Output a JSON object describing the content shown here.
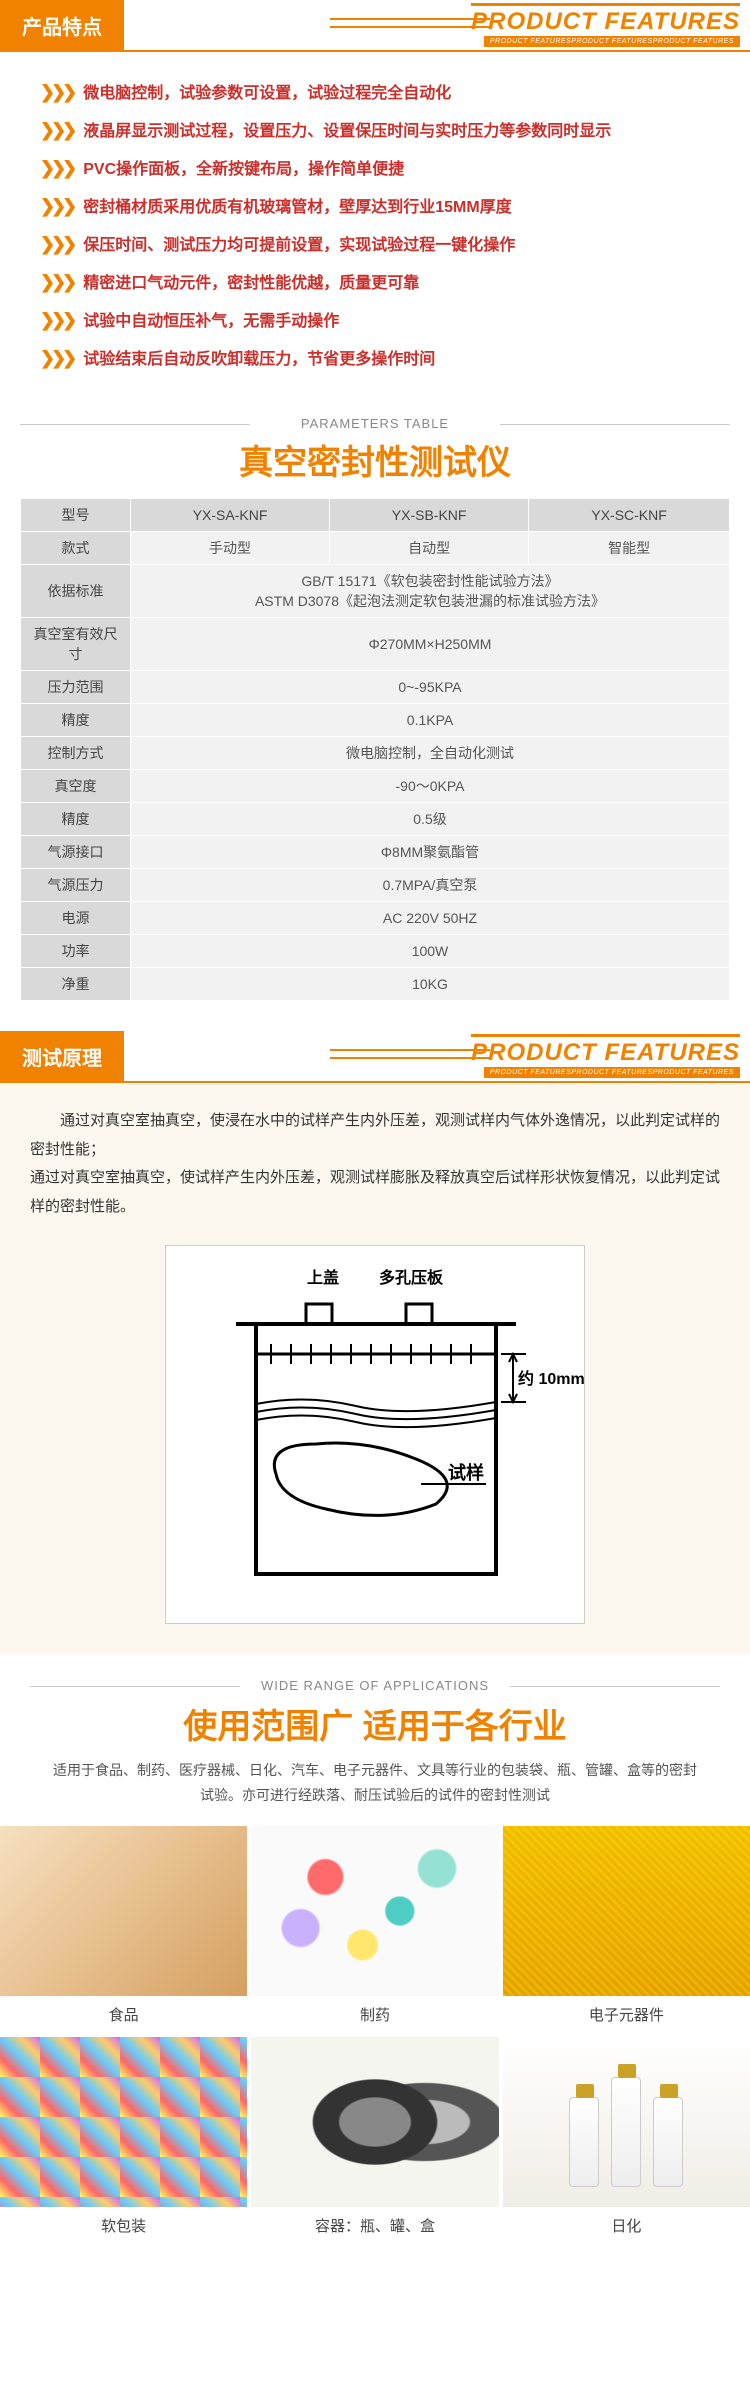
{
  "colors": {
    "accent": "#f08200",
    "feature_text": "#c9302c",
    "table_hdr_bg": "#d9d9d9",
    "table_cell_bg": "#f2f2f2",
    "principle_bg": "#fdf8ef"
  },
  "header1": {
    "cn": "产品特点",
    "en": "PRODUCT FEATURES",
    "sub": "PRODUCT FEATURESPRODUCT FEATURESPRODUCT FEATURES"
  },
  "features": [
    "微电脑控制，试验参数可设置，试验过程完全自动化",
    "液晶屏显示测试过程，设置压力、设置保压时间与实时压力等参数同时显示",
    "PVC操作面板，全新按键布局，操作简单便捷",
    "密封桶材质采用优质有机玻璃管材，壁厚达到行业15MM厚度",
    "保压时间、测试压力均可提前设置，实现试验过程一键化操作",
    "精密进口气动元件，密封性能优越，质量更可靠",
    "试验中自动恒压补气，无需手动操作",
    "试验结束后自动反吹卸载压力，节省更多操作时间"
  ],
  "params": {
    "label": "PARAMETERS TABLE",
    "title": "真空密封性测试仪",
    "cols": {
      "c0": "型号",
      "c1": "YX-SA-KNF",
      "c2": "YX-SB-KNF",
      "c3": "YX-SC-KNF"
    },
    "style_row": {
      "label": "款式",
      "v1": "手动型",
      "v2": "自动型",
      "v3": "智能型"
    },
    "rows": [
      {
        "label": "依据标准",
        "value": "GB/T 15171《软包装密封性能试验方法》\nASTM D3078《起泡法测定软包装泄漏的标准试验方法》"
      },
      {
        "label": "真空室有效尺寸",
        "value": "Φ270MM×H250MM"
      },
      {
        "label": "压力范围",
        "value": "0~-95KPA"
      },
      {
        "label": "精度",
        "value": "0.1KPA"
      },
      {
        "label": "控制方式",
        "value": "微电脑控制，全自动化测试"
      },
      {
        "label": "真空度",
        "value": "-90～0KPA"
      },
      {
        "label": "精度",
        "value": "0.5级"
      },
      {
        "label": "气源接口",
        "value": "Φ8MM聚氨酯管"
      },
      {
        "label": "气源压力",
        "value": "0.7MPA/真空泵"
      },
      {
        "label": "电源",
        "value": "AC 220V 50HZ"
      },
      {
        "label": "功率",
        "value": "100W"
      },
      {
        "label": "净重",
        "value": "10KG"
      }
    ]
  },
  "header2": {
    "cn": "测试原理",
    "en": "PRODUCT FEATURES",
    "sub": "PRODUCT FEATURESPRODUCT FEATURESPRODUCT FEATURES"
  },
  "principle": {
    "p1": "通过对真空室抽真空，使浸在水中的试样产生内外压差，观测试样内气体外逸情况，以此判定试样的密封性能；",
    "p2": "通过对真空室抽真空，使试样产生内外压差，观测试样膨胀及释放真空后试样形状恢复情况，以此判定试样的密封性能。",
    "diagram": {
      "lid": "上盖",
      "plate": "多孔压板",
      "depth": "约 10mm",
      "sample": "试样"
    }
  },
  "apps": {
    "sub": "WIDE RANGE OF APPLICATIONS",
    "title": "使用范围广 适用于各行业",
    "desc": "适用于食品、制药、医疗器械、日化、汽车、电子元器件、文具等行业的包装袋、瓶、管罐、盒等的密封试验。亦可进行经跌落、耐压试验后的试件的密封性测试",
    "items": [
      {
        "cap": "食品",
        "cls": "img-food"
      },
      {
        "cap": "制药",
        "cls": "img-pills"
      },
      {
        "cap": "电子元器件",
        "cls": "img-pcb"
      },
      {
        "cap": "软包装",
        "cls": "img-pack"
      },
      {
        "cap": "容器：瓶、罐、盒",
        "cls": "img-cans"
      },
      {
        "cap": "日化",
        "cls": "img-cos"
      }
    ]
  }
}
